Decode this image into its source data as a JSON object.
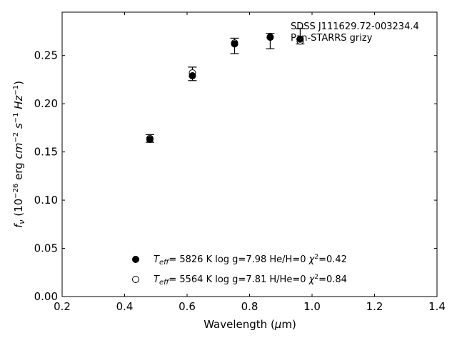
{
  "chart_data": {
    "type": "scatter",
    "xlabel": "Wavelength (μm)",
    "ylabel": "f_ν (10^-26 erg cm^-2 s^-1 Hz^-1)",
    "xlim": [
      0.2,
      1.4
    ],
    "ylim": [
      0.0,
      0.295
    ],
    "xticks": [
      "0.2",
      "0.4",
      "0.6",
      "0.8",
      "1.0",
      "1.2",
      "1.4"
    ],
    "yticks": [
      "0.00",
      "0.05",
      "0.10",
      "0.15",
      "0.20",
      "0.25"
    ],
    "annotations": [
      "SDSS J111629.72-003234.4",
      "Pan-STARRS grizy"
    ],
    "observed": {
      "x": [
        0.481,
        0.617,
        0.752,
        0.866,
        0.962
      ],
      "y": [
        0.164,
        0.231,
        0.26,
        0.265,
        0.27
      ],
      "yerr": [
        0.004,
        0.007,
        0.008,
        0.008,
        0.008
      ]
    },
    "series": [
      {
        "legend_label": "T_eff= 5826 K  log g=7.98  He/H=0  χ²=0.42",
        "marker": "filled-circle",
        "x": [
          0.481,
          0.617,
          0.752,
          0.866,
          0.962
        ],
        "y": [
          0.163,
          0.229,
          0.262,
          0.269,
          0.267
        ]
      },
      {
        "legend_label": "T_eff= 5564 K  log g=7.81  H/He=0  χ²=0.84",
        "marker": "open-circle",
        "x": [
          0.481,
          0.617,
          0.752,
          0.866,
          0.962
        ],
        "y": [
          0.164,
          0.232,
          0.263,
          0.269,
          0.265
        ]
      }
    ],
    "legend_position": "lower-center",
    "grid": false
  }
}
